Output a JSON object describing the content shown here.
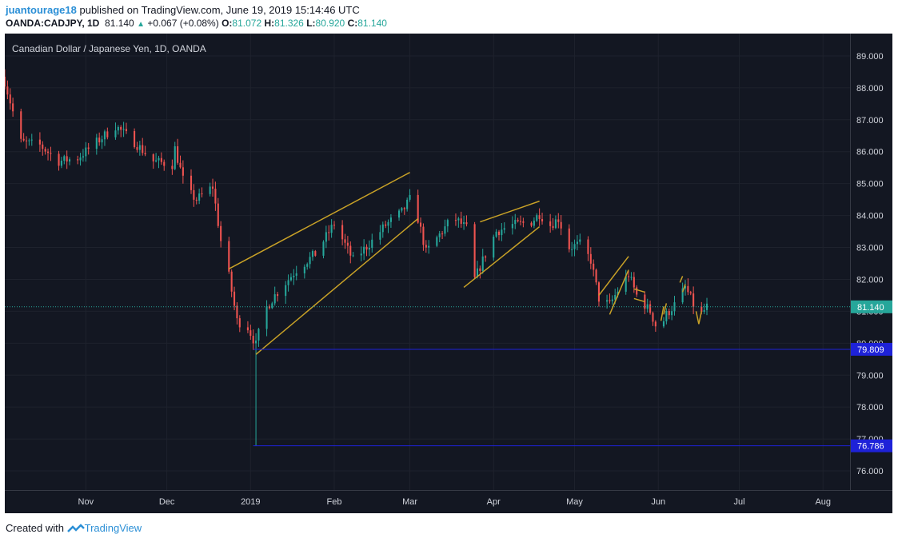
{
  "header": {
    "author": "juantourage18",
    "published_text": "published on TradingView.com, June 19, 2019 15:14:46 UTC",
    "symbol": "OANDA:CADJPY, 1D",
    "last": "81.140",
    "change": "+0.067 (+0.08%)",
    "open_label": "O:",
    "open": "81.072",
    "high_label": "H:",
    "high": "81.326",
    "low_label": "L:",
    "low": "80.920",
    "close_label": "C:",
    "close": "81.140"
  },
  "footer": {
    "created_with": "Created with",
    "brand": "TradingView"
  },
  "colors": {
    "background": "#131722",
    "up": "#26a69a",
    "down": "#ef5350",
    "pattern": "#c9a227",
    "level": "#1e22d8",
    "axis_text": "#d1d4dc"
  },
  "chart_data": {
    "type": "candlestick",
    "title": "Canadian Dollar / Japanese Yen, 1D, OANDA",
    "ylim": [
      75.4,
      89.7
    ],
    "y_ticks": [
      "89.000",
      "88.000",
      "87.000",
      "86.000",
      "85.000",
      "84.000",
      "83.000",
      "82.000",
      "81.000",
      "80.000",
      "79.000",
      "78.000",
      "77.000",
      "76.000"
    ],
    "x_range": [
      "2018-10-02",
      "2019-08-11"
    ],
    "x_ticks": [
      {
        "label": "Nov",
        "date": "2018-11-01"
      },
      {
        "label": "Dec",
        "date": "2018-12-01"
      },
      {
        "label": "2019",
        "date": "2019-01-01"
      },
      {
        "label": "Feb",
        "date": "2019-02-01"
      },
      {
        "label": "Mar",
        "date": "2019-03-01"
      },
      {
        "label": "Apr",
        "date": "2019-04-01"
      },
      {
        "label": "May",
        "date": "2019-05-01"
      },
      {
        "label": "Jun",
        "date": "2019-06-01"
      },
      {
        "label": "Jul",
        "date": "2019-07-01"
      },
      {
        "label": "Aug",
        "date": "2019-08-01"
      }
    ],
    "price_label": {
      "value": 81.14,
      "text": "81.140"
    },
    "horizontal_levels": [
      {
        "value": 79.809,
        "text": "79.809",
        "from": "2019-01-02"
      },
      {
        "value": 76.786,
        "text": "76.786",
        "from": "2019-01-02"
      }
    ],
    "pattern_lines": [
      {
        "from": [
          "2018-12-24",
          82.33
        ],
        "to": [
          "2019-03-01",
          85.35
        ]
      },
      {
        "from": [
          "2019-01-03",
          79.65
        ],
        "to": [
          "2019-03-04",
          83.9
        ]
      },
      {
        "from": [
          "2019-03-27",
          83.8
        ],
        "to": [
          "2019-04-18",
          84.45
        ]
      },
      {
        "from": [
          "2019-03-21",
          81.75
        ],
        "to": [
          "2019-04-18",
          83.65
        ]
      },
      {
        "from": [
          "2019-05-10",
          81.5
        ],
        "to": [
          "2019-05-21",
          82.72
        ]
      },
      {
        "from": [
          "2019-05-14",
          80.9
        ],
        "to": [
          "2019-05-21",
          82.3
        ]
      },
      {
        "from": [
          "2019-05-23",
          81.7
        ],
        "to": [
          "2019-05-27",
          81.6
        ]
      },
      {
        "from": [
          "2019-05-23",
          81.4
        ],
        "to": [
          "2019-05-27",
          81.3
        ]
      },
      {
        "from": [
          "2019-06-02",
          80.7
        ],
        "to": [
          "2019-06-03",
          81.15
        ]
      },
      {
        "from": [
          "2019-06-03",
          80.9
        ],
        "to": [
          "2019-06-04",
          81.25
        ]
      },
      {
        "from": [
          "2019-06-09",
          81.9
        ],
        "to": [
          "2019-06-10",
          82.1
        ]
      },
      {
        "from": [
          "2019-06-10",
          81.6
        ],
        "to": [
          "2019-06-11",
          81.85
        ]
      },
      {
        "from": [
          "2019-06-15",
          81.0
        ],
        "to": [
          "2019-06-16",
          80.6
        ]
      },
      {
        "from": [
          "2019-06-16",
          80.6
        ],
        "to": [
          "2019-06-17",
          81.0
        ]
      }
    ],
    "anchors": [
      [
        "2018-10-02",
        88.2
      ],
      [
        "2018-10-08",
        86.3
      ],
      [
        "2018-10-15",
        86.2
      ],
      [
        "2018-10-22",
        85.7
      ],
      [
        "2018-10-29",
        85.8
      ],
      [
        "2018-11-05",
        86.3
      ],
      [
        "2018-11-12",
        86.8
      ],
      [
        "2018-11-19",
        86.3
      ],
      [
        "2018-11-26",
        85.7
      ],
      [
        "2018-12-03",
        85.6
      ],
      [
        "2018-12-04",
        86.1
      ],
      [
        "2018-12-08",
        84.8
      ],
      [
        "2018-12-12",
        84.5
      ],
      [
        "2018-12-18",
        84.9
      ],
      [
        "2018-12-21",
        83.2
      ],
      [
        "2018-12-24",
        82.1
      ],
      [
        "2018-12-27",
        80.7
      ],
      [
        "2018-12-31",
        80.5
      ],
      [
        "2019-01-03",
        79.95
      ],
      [
        "2019-01-06",
        81.0
      ],
      [
        "2019-01-10",
        81.5
      ],
      [
        "2019-01-18",
        82.3
      ],
      [
        "2019-01-25",
        82.8
      ],
      [
        "2019-02-01",
        83.75
      ],
      [
        "2019-02-08",
        82.6
      ],
      [
        "2019-02-15",
        83.2
      ],
      [
        "2019-02-20",
        83.7
      ],
      [
        "2019-02-26",
        84.1
      ],
      [
        "2019-03-01",
        84.5
      ],
      [
        "2019-03-04",
        83.9
      ],
      [
        "2019-03-07",
        82.85
      ],
      [
        "2019-03-12",
        83.4
      ],
      [
        "2019-03-17",
        83.95
      ],
      [
        "2019-03-22",
        83.6
      ],
      [
        "2019-03-25",
        82.0
      ],
      [
        "2019-03-28",
        82.6
      ],
      [
        "2019-04-02",
        83.5
      ],
      [
        "2019-04-08",
        83.7
      ],
      [
        "2019-04-15",
        83.8
      ],
      [
        "2019-04-18",
        84.05
      ],
      [
        "2019-04-22",
        83.7
      ],
      [
        "2019-04-25",
        83.9
      ],
      [
        "2019-04-29",
        83.0
      ],
      [
        "2019-05-03",
        83.1
      ],
      [
        "2019-05-07",
        82.6
      ],
      [
        "2019-05-10",
        81.4
      ],
      [
        "2019-05-14",
        81.2
      ],
      [
        "2019-05-18",
        81.8
      ],
      [
        "2019-05-21",
        82.15
      ],
      [
        "2019-05-24",
        81.5
      ],
      [
        "2019-05-29",
        81.0
      ],
      [
        "2019-06-01",
        80.35
      ],
      [
        "2019-06-04",
        80.9
      ],
      [
        "2019-06-08",
        81.3
      ],
      [
        "2019-06-11",
        81.75
      ],
      [
        "2019-06-13",
        81.4
      ],
      [
        "2019-06-16",
        80.8
      ],
      [
        "2019-06-19",
        81.14
      ]
    ]
  }
}
